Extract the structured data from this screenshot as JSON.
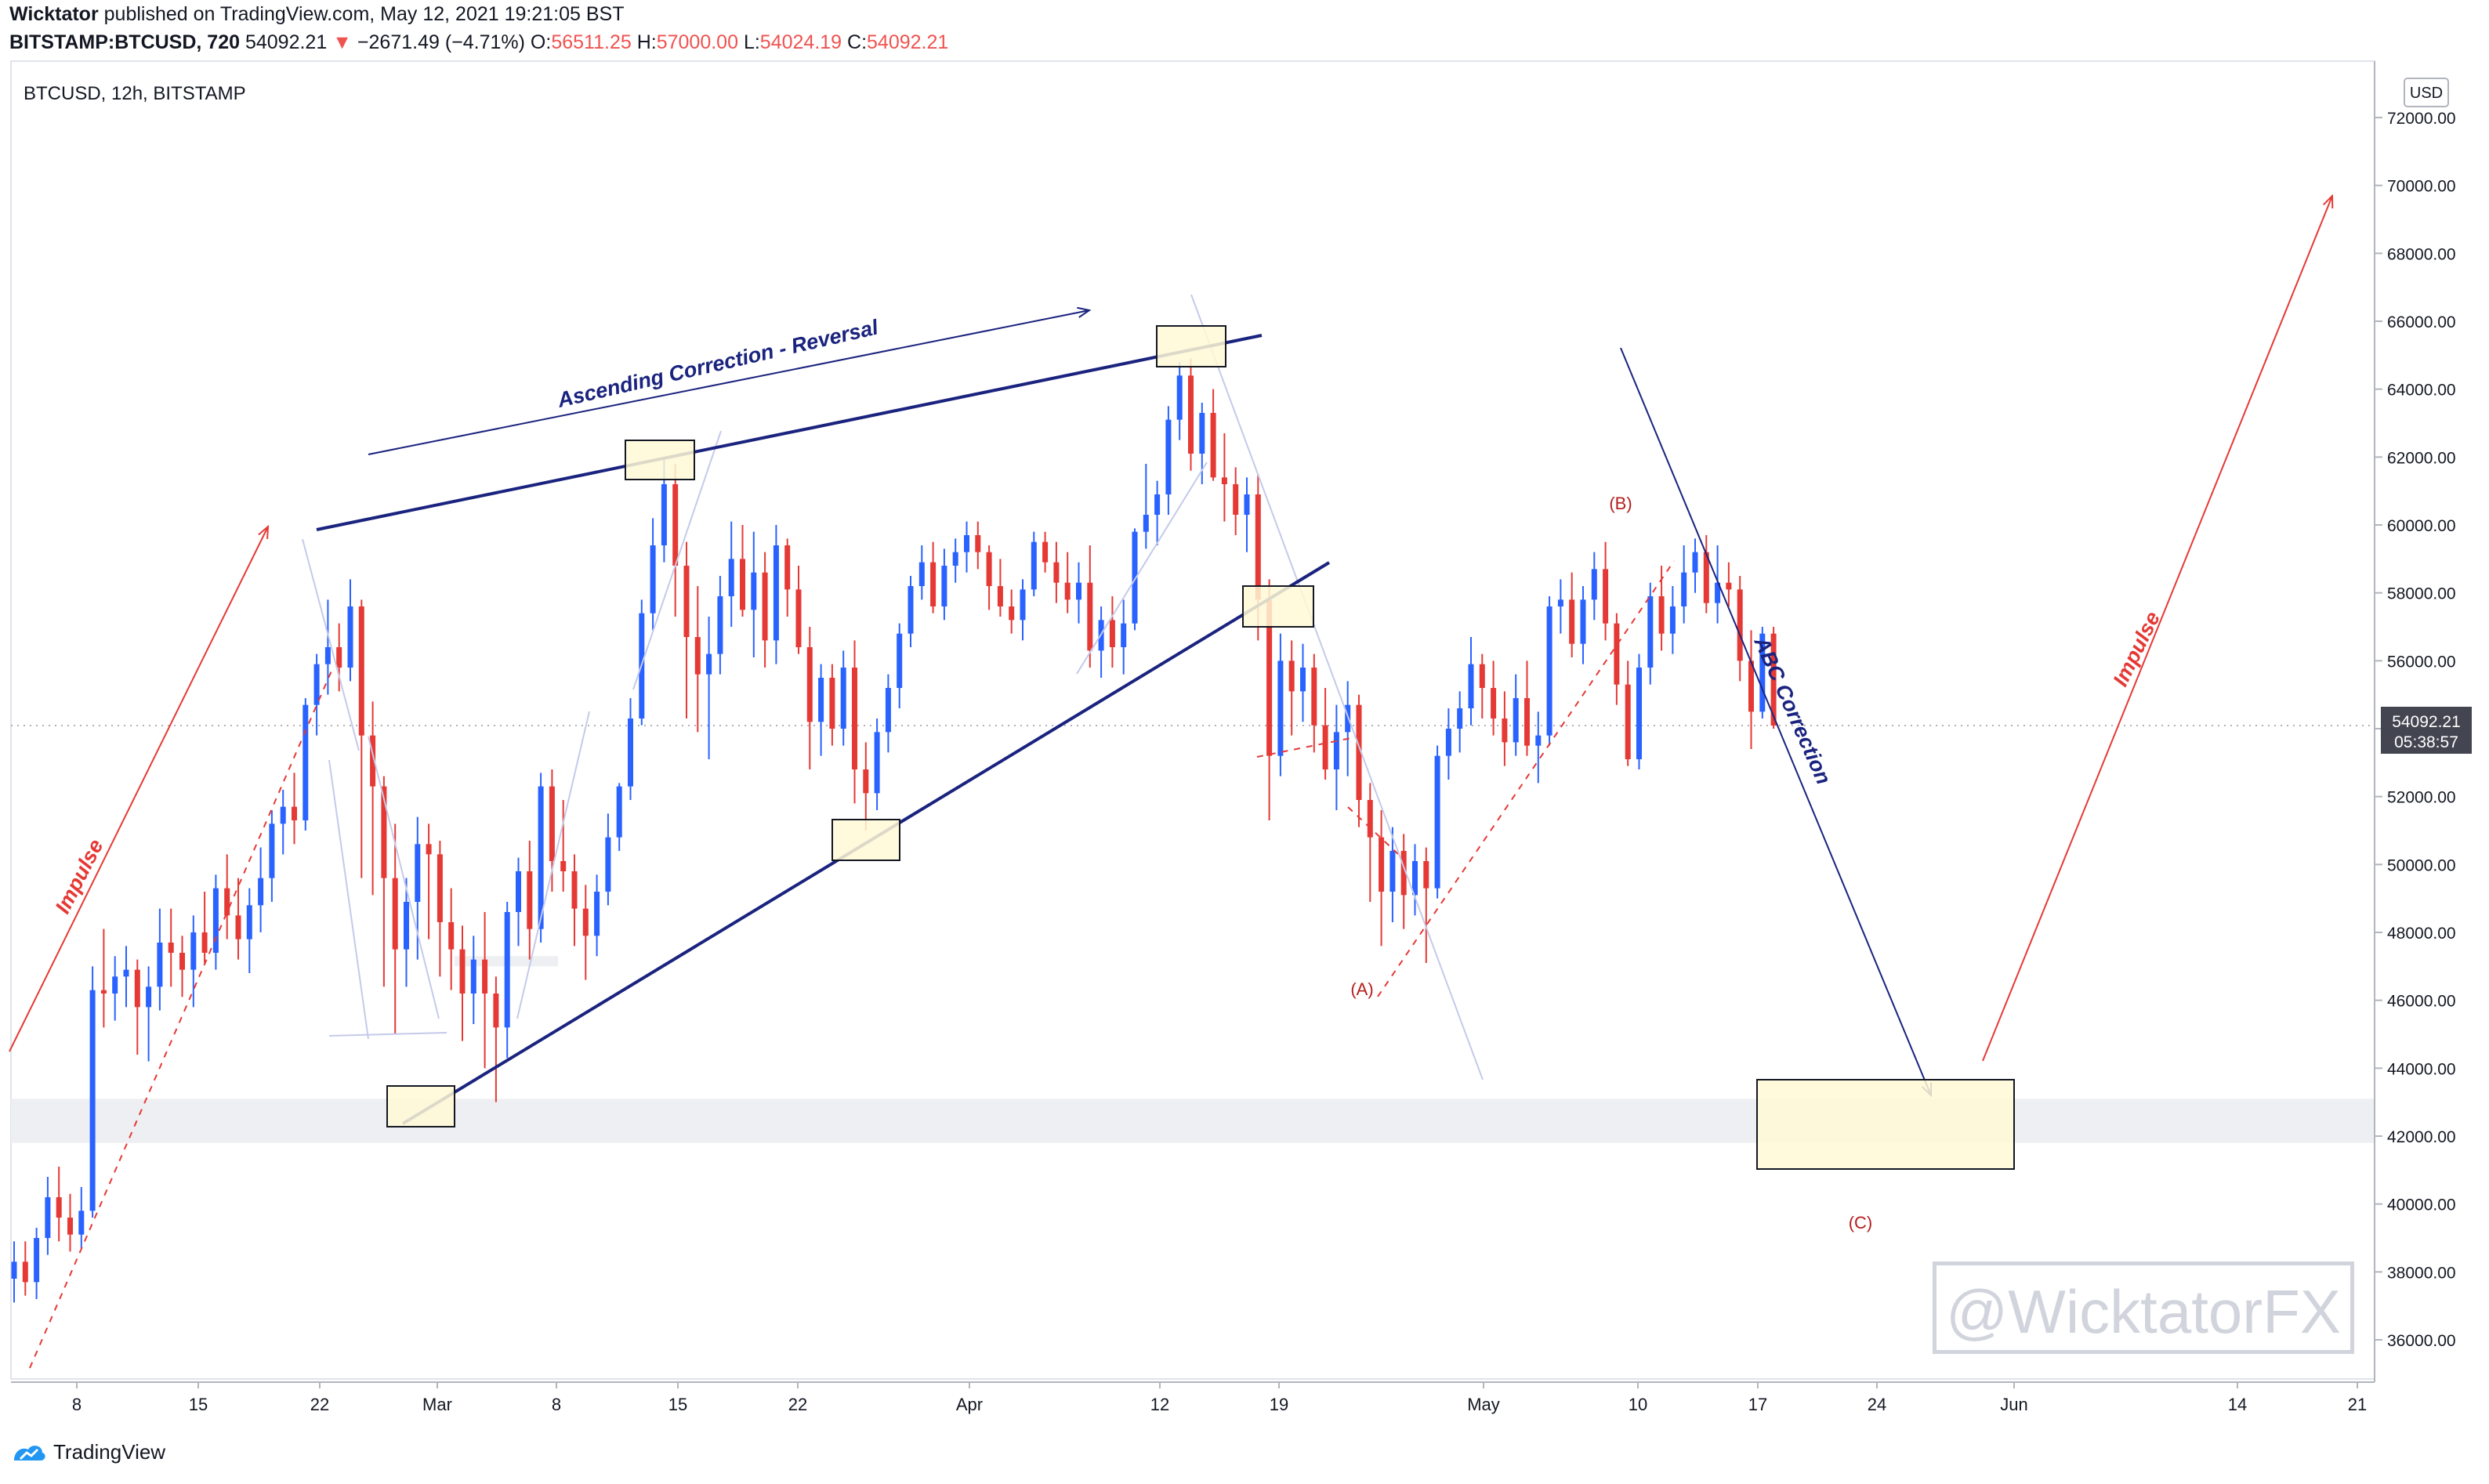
{
  "header": {
    "author": "Wicktator",
    "published_text": "published on TradingView.com, May 12, 2021 19:21:05 BST",
    "symbol": "BITSTAMP:BTCUSD, 720",
    "last_price": "54092.21",
    "change": "−2671.49 (−4.71%)",
    "open_label": "O:",
    "open": "56511.25",
    "high_label": "H:",
    "high": "57000.00",
    "low_label": "L:",
    "low": "54024.19",
    "close_label": "C:",
    "close": "54092.21"
  },
  "chart_title": "BTCUSD, 12h, BITSTAMP",
  "currency_button": "USD",
  "price_badge": {
    "price": "54092.21",
    "countdown": "05:38:57"
  },
  "annotations": {
    "ascending": "Ascending Correction - Reversal",
    "impulse_left": "Impulse",
    "impulse_right": "Impulse",
    "abc": "ABC Correction",
    "wave_a": "(A)",
    "wave_b": "(B)",
    "wave_c": "(C)"
  },
  "watermark": "@WicktatorFX",
  "footer": {
    "brand": "TradingView"
  },
  "colors": {
    "up": "#2962ff",
    "down": "#e53935",
    "trend": "#1a237e",
    "red_line": "#e53935",
    "box_fill": "#fff9d6"
  },
  "chart_data": {
    "type": "candlestick",
    "symbol": "BTCUSD",
    "interval": "12h",
    "exchange": "BITSTAMP",
    "ylim": [
      35000,
      72000
    ],
    "y_ticks": [
      "36000.00",
      "38000.00",
      "40000.00",
      "42000.00",
      "44000.00",
      "46000.00",
      "48000.00",
      "50000.00",
      "52000.00",
      "54000.00",
      "56000.00",
      "58000.00",
      "60000.00",
      "62000.00",
      "64000.00",
      "66000.00",
      "68000.00",
      "70000.00",
      "72000.00"
    ],
    "x_ticks": [
      "8",
      "15",
      "22",
      "Mar",
      "8",
      "15",
      "22",
      "Apr",
      "12",
      "19",
      "May",
      "10",
      "17",
      "24",
      "Jun",
      "14",
      "21"
    ],
    "candles": [
      [
        37800,
        38900,
        37100,
        38300
      ],
      [
        38300,
        38900,
        37300,
        37700
      ],
      [
        37700,
        39300,
        37200,
        39000
      ],
      [
        39000,
        40800,
        38500,
        40200
      ],
      [
        40200,
        41100,
        38900,
        39600
      ],
      [
        39600,
        40300,
        38600,
        39100
      ],
      [
        39100,
        40500,
        38700,
        39800
      ],
      [
        39800,
        47000,
        39600,
        46300
      ],
      [
        46300,
        48100,
        45200,
        46200
      ],
      [
        46200,
        47300,
        45400,
        46700
      ],
      [
        46700,
        47600,
        45800,
        46900
      ],
      [
        46900,
        47200,
        44400,
        45800
      ],
      [
        45800,
        47000,
        44200,
        46400
      ],
      [
        46400,
        48700,
        45700,
        47700
      ],
      [
        47700,
        48700,
        46400,
        47400
      ],
      [
        47400,
        47900,
        46100,
        46900
      ],
      [
        46900,
        48500,
        45800,
        48000
      ],
      [
        48000,
        49200,
        47100,
        47400
      ],
      [
        47400,
        49700,
        46900,
        49300
      ],
      [
        49300,
        50300,
        47800,
        48500
      ],
      [
        48500,
        49600,
        47200,
        47800
      ],
      [
        47800,
        49300,
        46800,
        48800
      ],
      [
        48800,
        50500,
        48000,
        49600
      ],
      [
        49600,
        51600,
        48900,
        51200
      ],
      [
        51200,
        52200,
        50300,
        51700
      ],
      [
        51700,
        52700,
        50600,
        51300
      ],
      [
        51300,
        54900,
        51000,
        54700
      ],
      [
        54700,
        56200,
        53800,
        55900
      ],
      [
        55900,
        57800,
        55000,
        56400
      ],
      [
        56400,
        57100,
        55100,
        55800
      ],
      [
        55800,
        58400,
        55400,
        57600
      ],
      [
        57600,
        57800,
        49600,
        53800
      ],
      [
        53800,
        54800,
        49100,
        52300
      ],
      [
        52300,
        52600,
        46400,
        49600
      ],
      [
        49600,
        51200,
        45000,
        47500
      ],
      [
        47500,
        49600,
        46400,
        48900
      ],
      [
        48900,
        51400,
        47200,
        50600
      ],
      [
        50600,
        51200,
        47800,
        50300
      ],
      [
        50300,
        50700,
        46700,
        48300
      ],
      [
        48300,
        49300,
        46300,
        47500
      ],
      [
        47500,
        48200,
        44800,
        46200
      ],
      [
        46200,
        47900,
        45300,
        47200
      ],
      [
        47200,
        48600,
        44000,
        46200
      ],
      [
        46200,
        46700,
        43000,
        45200
      ],
      [
        45200,
        48900,
        44300,
        48600
      ],
      [
        48600,
        50200,
        47600,
        49800
      ],
      [
        49800,
        50700,
        47200,
        48100
      ],
      [
        48100,
        52700,
        47700,
        52300
      ],
      [
        52300,
        52800,
        49200,
        50100
      ],
      [
        50100,
        51900,
        49200,
        49800
      ],
      [
        49800,
        50300,
        47600,
        48700
      ],
      [
        48700,
        49400,
        46600,
        47900
      ],
      [
        47900,
        49700,
        47300,
        49200
      ],
      [
        49200,
        51500,
        48800,
        50800
      ],
      [
        50800,
        52400,
        50400,
        52300
      ],
      [
        52300,
        54900,
        51900,
        54300
      ],
      [
        54300,
        57800,
        54100,
        57400
      ],
      [
        57400,
        60200,
        56900,
        59400
      ],
      [
        59400,
        62000,
        58900,
        61200
      ],
      [
        61200,
        61800,
        57300,
        58800
      ],
      [
        58800,
        59500,
        54300,
        56700
      ],
      [
        56700,
        58200,
        53900,
        55600
      ],
      [
        55600,
        57300,
        53100,
        56200
      ],
      [
        56200,
        58500,
        55600,
        57900
      ],
      [
        57900,
        60100,
        57000,
        59000
      ],
      [
        59000,
        60000,
        57300,
        57500
      ],
      [
        57500,
        59800,
        56100,
        58600
      ],
      [
        58600,
        59200,
        55800,
        56600
      ],
      [
        56600,
        60000,
        55900,
        59400
      ],
      [
        59400,
        59600,
        57300,
        58100
      ],
      [
        58100,
        58800,
        56200,
        56400
      ],
      [
        56400,
        57000,
        52800,
        54200
      ],
      [
        54200,
        55900,
        53200,
        55500
      ],
      [
        55500,
        55900,
        53500,
        54000
      ],
      [
        54000,
        56300,
        53500,
        55800
      ],
      [
        55800,
        56600,
        51800,
        52800
      ],
      [
        52800,
        53600,
        51000,
        52100
      ],
      [
        52100,
        54300,
        51600,
        53900
      ],
      [
        53900,
        55600,
        53300,
        55200
      ],
      [
        55200,
        57100,
        54600,
        56800
      ],
      [
        56800,
        58500,
        56400,
        58200
      ],
      [
        58200,
        59400,
        57800,
        58900
      ],
      [
        58900,
        59500,
        57400,
        57600
      ],
      [
        57600,
        59300,
        57200,
        58800
      ],
      [
        58800,
        59600,
        58300,
        59200
      ],
      [
        59200,
        60100,
        58600,
        59700
      ],
      [
        59700,
        60100,
        58700,
        59200
      ],
      [
        59200,
        59400,
        57500,
        58200
      ],
      [
        58200,
        59000,
        57300,
        57600
      ],
      [
        57600,
        58100,
        56800,
        57200
      ],
      [
        57200,
        58400,
        56600,
        58100
      ],
      [
        58100,
        59800,
        57900,
        59500
      ],
      [
        59500,
        59800,
        58600,
        58900
      ],
      [
        58900,
        59500,
        57700,
        58300
      ],
      [
        58300,
        59200,
        57400,
        57800
      ],
      [
        57800,
        58900,
        57100,
        58300
      ],
      [
        58300,
        59400,
        55800,
        56300
      ],
      [
        56300,
        57600,
        55500,
        57200
      ],
      [
        57200,
        57900,
        55800,
        56400
      ],
      [
        56400,
        57800,
        55600,
        57100
      ],
      [
        57100,
        59900,
        56900,
        59800
      ],
      [
        59800,
        61800,
        59300,
        60300
      ],
      [
        60300,
        61300,
        59400,
        60900
      ],
      [
        60900,
        63500,
        60300,
        63100
      ],
      [
        63100,
        64800,
        62500,
        64400
      ],
      [
        64400,
        64900,
        61600,
        62100
      ],
      [
        62100,
        63600,
        61200,
        63300
      ],
      [
        63300,
        64000,
        61300,
        61400
      ],
      [
        61400,
        62700,
        60100,
        61200
      ],
      [
        61200,
        61700,
        59700,
        60300
      ],
      [
        60300,
        61400,
        59200,
        60900
      ],
      [
        60900,
        61500,
        56600,
        57800
      ],
      [
        57800,
        58400,
        51300,
        53200
      ],
      [
        53200,
        56800,
        52600,
        56000
      ],
      [
        56000,
        56600,
        53800,
        55100
      ],
      [
        55100,
        56500,
        54200,
        55800
      ],
      [
        55800,
        56200,
        53300,
        54100
      ],
      [
        54100,
        55200,
        52500,
        52800
      ],
      [
        52800,
        54700,
        51600,
        53900
      ],
      [
        53900,
        55400,
        52600,
        54700
      ],
      [
        54700,
        55000,
        51100,
        51900
      ],
      [
        51900,
        52400,
        48900,
        50800
      ],
      [
        50800,
        51600,
        47600,
        49200
      ],
      [
        49200,
        51100,
        48300,
        50400
      ],
      [
        50400,
        50900,
        48100,
        49100
      ],
      [
        49100,
        50600,
        48500,
        50100
      ],
      [
        50100,
        50500,
        47100,
        49300
      ],
      [
        49300,
        53500,
        49000,
        53200
      ],
      [
        53200,
        54600,
        52500,
        54000
      ],
      [
        54000,
        55100,
        53300,
        54600
      ],
      [
        54600,
        56700,
        54100,
        55900
      ],
      [
        55900,
        56200,
        54300,
        55200
      ],
      [
        55200,
        56000,
        53800,
        54300
      ],
      [
        54300,
        55100,
        52900,
        53600
      ],
      [
        53600,
        55600,
        53200,
        54900
      ],
      [
        54900,
        56000,
        53200,
        53500
      ],
      [
        53500,
        54500,
        52400,
        53800
      ],
      [
        53800,
        57900,
        53500,
        57600
      ],
      [
        57600,
        58400,
        56800,
        57800
      ],
      [
        57800,
        58600,
        56100,
        56500
      ],
      [
        56500,
        58200,
        55900,
        57800
      ],
      [
        57800,
        59200,
        57200,
        58700
      ],
      [
        58700,
        59500,
        56600,
        57100
      ],
      [
        57100,
        57400,
        54700,
        55300
      ],
      [
        55300,
        56000,
        52900,
        53100
      ],
      [
        53100,
        56200,
        52800,
        55800
      ],
      [
        55800,
        58300,
        55300,
        57900
      ],
      [
        57900,
        58800,
        56300,
        56800
      ],
      [
        56800,
        58200,
        56200,
        57600
      ],
      [
        57600,
        59400,
        57100,
        58600
      ],
      [
        58600,
        59600,
        58000,
        59200
      ],
      [
        59200,
        59700,
        57400,
        57700
      ],
      [
        57700,
        59400,
        57100,
        58300
      ],
      [
        58300,
        58900,
        57600,
        58100
      ],
      [
        58100,
        58500,
        55400,
        56000
      ],
      [
        56000,
        56900,
        53400,
        54500
      ],
      [
        54500,
        57000,
        54300,
        56800
      ],
      [
        56800,
        57000,
        54000,
        54092
      ]
    ]
  }
}
